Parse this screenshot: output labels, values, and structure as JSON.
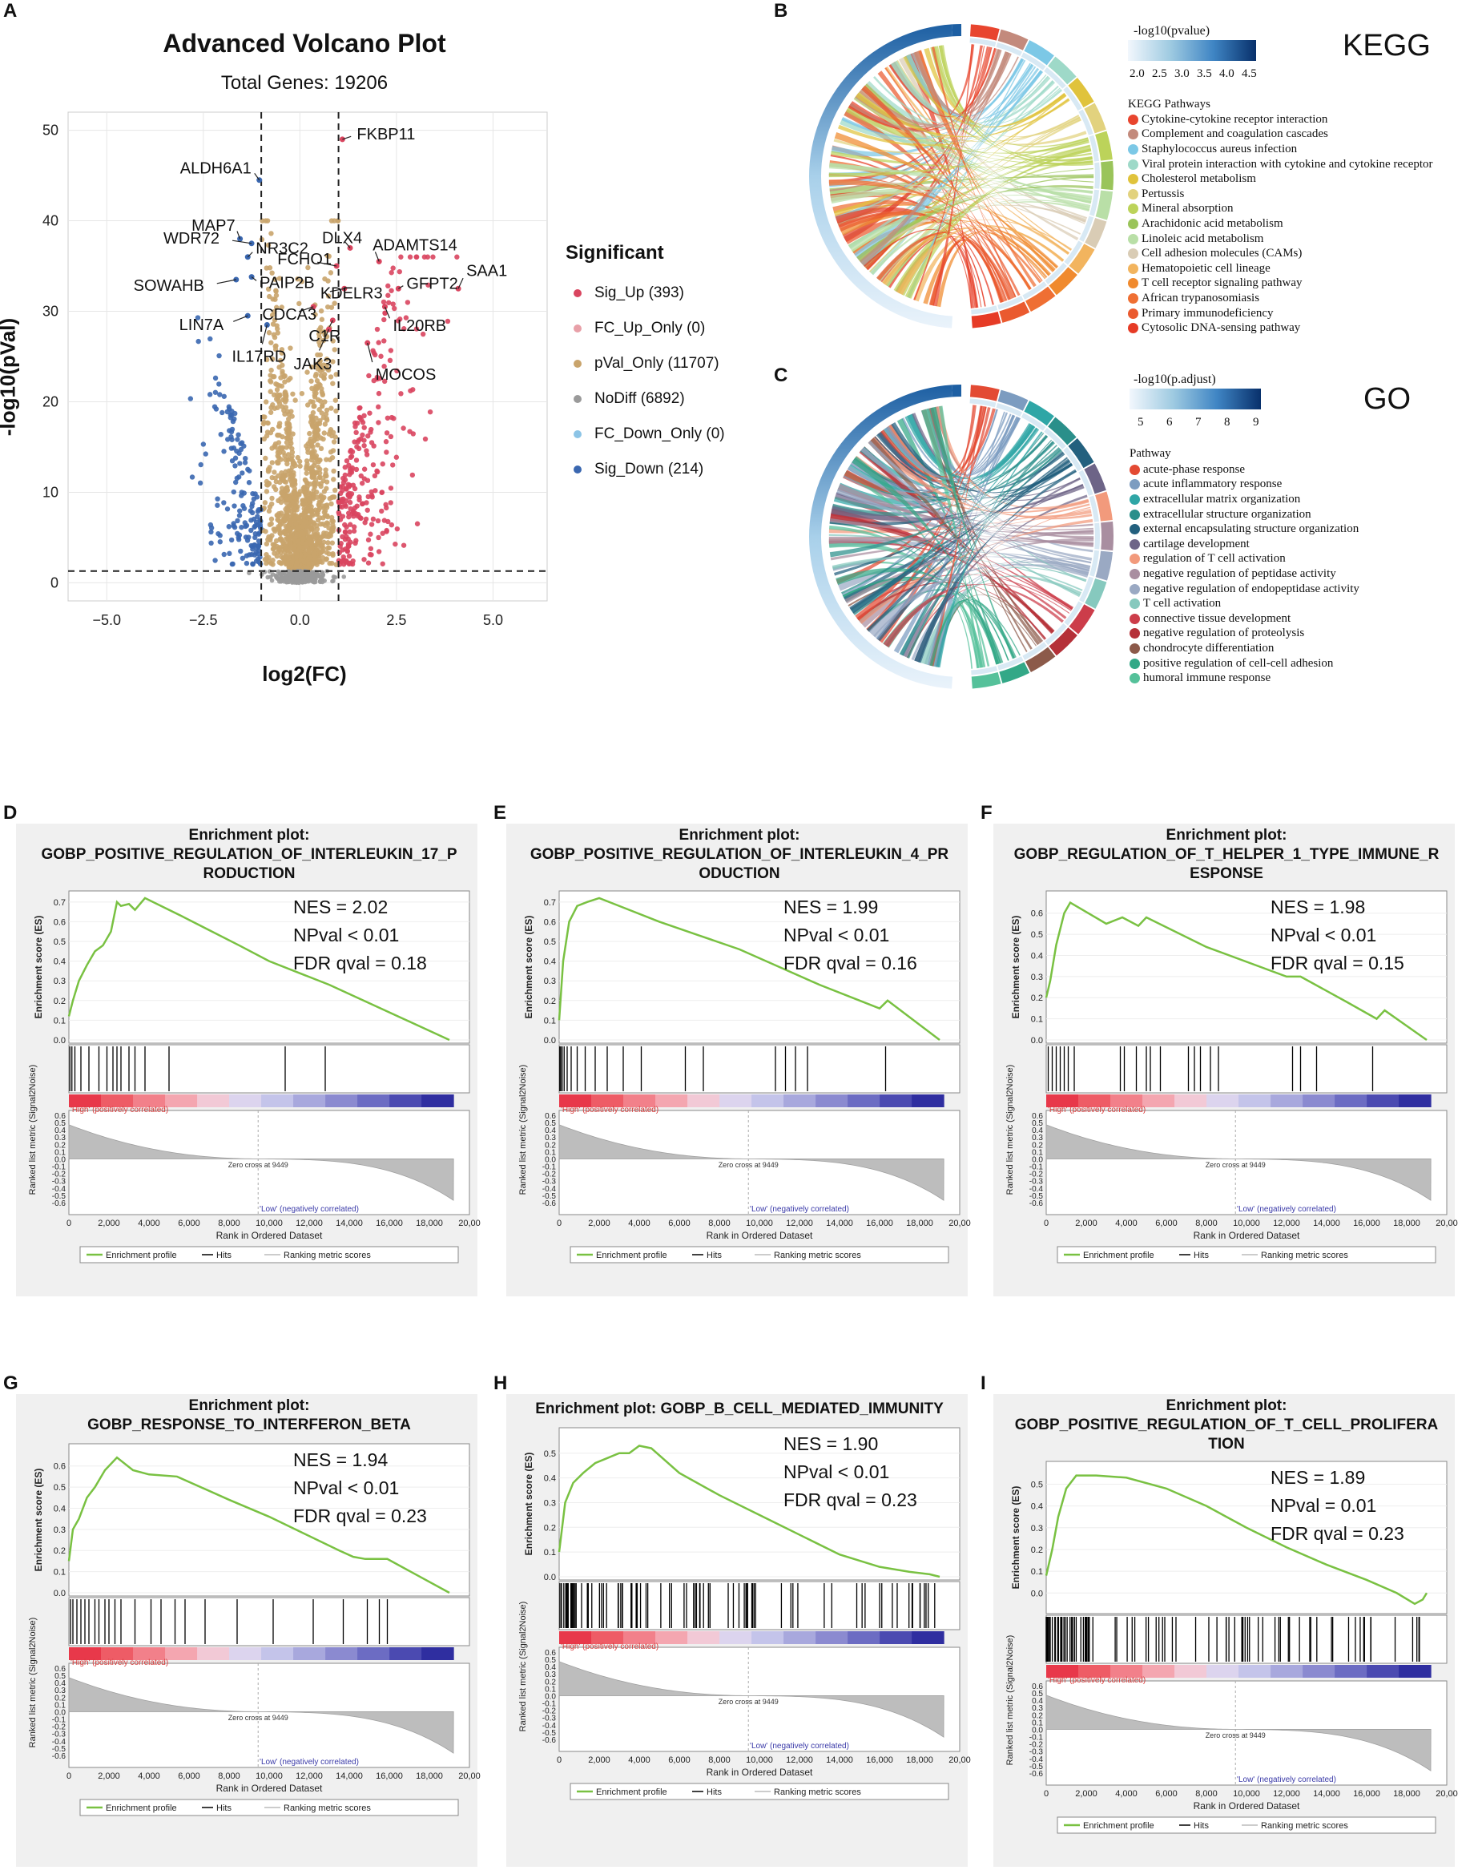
{
  "panel_letters": {
    "a": "A",
    "b": "B",
    "c": "C",
    "d": "D",
    "e": "E",
    "f": "F",
    "g": "G",
    "h": "H",
    "i": "I"
  },
  "volcano": {
    "title": "Advanced Volcano Plot",
    "subtitle": "Total Genes: 19206",
    "xlabel": "log2(FC)",
    "ylabel": "-log10(pVal)",
    "legend_title": "Significant",
    "legend": [
      {
        "label": "Sig_Up (393)",
        "color": "#d9455f"
      },
      {
        "label": "FC_Up_Only (0)",
        "color": "#e8a0a8"
      },
      {
        "label": "pVal_Only (11707)",
        "color": "#c9a46c"
      },
      {
        "label": "NoDiff (6892)",
        "color": "#9a9a9a"
      },
      {
        "label": "FC_Down_Only (0)",
        "color": "#8cc4e6"
      },
      {
        "label": "Sig_Down (214)",
        "color": "#3a67b0"
      }
    ],
    "xticks": [
      "−5.0",
      "−2.5",
      "0.0",
      "2.5",
      "5.0"
    ],
    "yticks": [
      "0",
      "10",
      "20",
      "30",
      "40",
      "50"
    ],
    "genes": [
      {
        "name": "FKBP11",
        "x": 1.1,
        "y": 49
      },
      {
        "name": "ALDH6A1",
        "x": -1.05,
        "y": 44.5
      },
      {
        "name": "MAP7",
        "x": -1.55,
        "y": 38
      },
      {
        "name": "DLX4",
        "x": 1.3,
        "y": 37
      },
      {
        "name": "WDR72",
        "x": -1.25,
        "y": 37.5
      },
      {
        "name": "NR3C2",
        "x": -1.35,
        "y": 36
      },
      {
        "name": "FCHO1",
        "x": 0.95,
        "y": 35
      },
      {
        "name": "ADAMTS14",
        "x": 2.05,
        "y": 35.5
      },
      {
        "name": "SAA1",
        "x": 4.1,
        "y": 32.5
      },
      {
        "name": "SOWAHB",
        "x": -1.65,
        "y": 33.5
      },
      {
        "name": "PAIP2B",
        "x": -1.25,
        "y": 33.8
      },
      {
        "name": "KDELR3",
        "x": 1.15,
        "y": 32.5
      },
      {
        "name": "GFPT2",
        "x": 2.55,
        "y": 32.5
      },
      {
        "name": "LIN7A",
        "x": -1.35,
        "y": 29.5
      },
      {
        "name": "CDCA3",
        "x": 0.35,
        "y": 30.5
      },
      {
        "name": "C1R",
        "x": 0.85,
        "y": 29
      },
      {
        "name": "IL20RB",
        "x": 2.2,
        "y": 30.5
      },
      {
        "name": "IL17RD",
        "x": -0.85,
        "y": 28.5
      },
      {
        "name": "JAK3",
        "x": 0.75,
        "y": 28
      },
      {
        "name": "MOCOS",
        "x": 1.75,
        "y": 26.5
      }
    ]
  },
  "kegg": {
    "label": "KEGG",
    "colorbar_title": "-log10(pvalue)",
    "colorbar_ticks": [
      "2.0",
      "2.5",
      "3.0",
      "3.5",
      "4.0",
      "4.5"
    ],
    "legend_title": "KEGG Pathways",
    "pathways": [
      {
        "name": "Cytokine-cytokine receptor interaction",
        "color": "#e8452e"
      },
      {
        "name": "Complement and coagulation cascades",
        "color": "#c38a7c"
      },
      {
        "name": "Staphylococcus aureus infection",
        "color": "#7cc8e6"
      },
      {
        "name": "Viral protein interaction with cytokine and cytokine receptor",
        "color": "#9ed9c8"
      },
      {
        "name": "Cholesterol metabolism",
        "color": "#e0c33c"
      },
      {
        "name": "Pertussis",
        "color": "#e2d27e"
      },
      {
        "name": "Mineral absorption",
        "color": "#bcd35a"
      },
      {
        "name": "Arachidonic acid metabolism",
        "color": "#9ac45a"
      },
      {
        "name": "Linoleic acid metabolism",
        "color": "#b9dfa7"
      },
      {
        "name": "Cell adhesion molecules (CAMs)",
        "color": "#d9ccb5"
      },
      {
        "name": "Hematopoietic cell lineage",
        "color": "#f2b45e"
      },
      {
        "name": "T cell receptor signaling pathway",
        "color": "#f08a2e"
      },
      {
        "name": "African trypanosomiasis",
        "color": "#ef6f33"
      },
      {
        "name": "Primary immunodeficiency",
        "color": "#ea5a2f"
      },
      {
        "name": "Cytosolic DNA-sensing pathway",
        "color": "#e63b26"
      }
    ]
  },
  "go": {
    "label": "GO",
    "colorbar_title": "-log10(p.adjust)",
    "colorbar_ticks": [
      "5",
      "6",
      "7",
      "8",
      "9"
    ],
    "legend_title": "Pathway",
    "pathways": [
      {
        "name": "acute-phase response",
        "color": "#e34a33"
      },
      {
        "name": "acute inflammatory response",
        "color": "#7c9cc0"
      },
      {
        "name": "extracellular matrix organization",
        "color": "#2fa6a6"
      },
      {
        "name": "extracellular structure organization",
        "color": "#2a8f8a"
      },
      {
        "name": "external encapsulating structure organization",
        "color": "#23607e"
      },
      {
        "name": "cartilage development",
        "color": "#6d6487"
      },
      {
        "name": "regulation of T cell activation",
        "color": "#f29a7c"
      },
      {
        "name": "negative regulation of peptidase activity",
        "color": "#a98ea0"
      },
      {
        "name": "negative regulation of endopeptidase activity",
        "color": "#9aa9c3"
      },
      {
        "name": "T cell activation",
        "color": "#86c9be"
      },
      {
        "name": "connective tissue development",
        "color": "#cc3d4a"
      },
      {
        "name": "negative regulation of proteolysis",
        "color": "#b53038"
      },
      {
        "name": "chondrocyte differentiation",
        "color": "#8c5a4a"
      },
      {
        "name": "positive regulation of cell-cell adhesion",
        "color": "#33a887"
      },
      {
        "name": "humoral immune response",
        "color": "#55c19a"
      }
    ]
  },
  "gsea_common": {
    "header": "Enrichment plot:",
    "es_label": "Enrichment score (ES)",
    "metric_label": "Ranked list metric (Signal2Noise)",
    "xlabel": "Rank in Ordered Dataset",
    "high_label": "'High' (positively correlated)",
    "low_label": "'Low' (negatively correlated)",
    "zero_cross": "Zero cross at 9449",
    "legend": [
      "Enrichment profile",
      "Hits",
      "Ranking metric scores"
    ],
    "xticks": [
      "0",
      "2,000",
      "4,000",
      "6,000",
      "8,000",
      "10,000",
      "12,000",
      "14,000",
      "16,000",
      "18,000",
      "20,00"
    ],
    "metric_ticks": [
      "0.6",
      "0.5",
      "0.4",
      "0.3",
      "0.2",
      "0.1",
      "0.0",
      "-0.1",
      "-0.2",
      "-0.3",
      "-0.4",
      "-0.5",
      "-0.6"
    ]
  },
  "gsea": [
    {
      "letter": "D",
      "title_lines": [
        "GOBP_POSITIVE_REGULATION_OF_INTERLEUKIN_17_P",
        "RODUCTION"
      ],
      "nes": "NES = 2.02",
      "npval": "NPval < 0.01",
      "fdr": "FDR qval = 0.18",
      "ymax": 0.7,
      "yticks": [
        "0.7",
        "0.6",
        "0.5",
        "0.4",
        "0.3",
        "0.2",
        "0.1",
        "0.0"
      ],
      "es": [
        [
          0,
          0.12
        ],
        [
          200,
          0.2
        ],
        [
          500,
          0.3
        ],
        [
          900,
          0.38
        ],
        [
          1300,
          0.45
        ],
        [
          1700,
          0.48
        ],
        [
          2100,
          0.55
        ],
        [
          2400,
          0.7
        ],
        [
          2600,
          0.68
        ],
        [
          3000,
          0.69
        ],
        [
          3300,
          0.66
        ],
        [
          3800,
          0.72
        ],
        [
          5600,
          0.63
        ],
        [
          8500,
          0.48
        ],
        [
          10000,
          0.4
        ],
        [
          13000,
          0.28
        ],
        [
          19000,
          0.0
        ]
      ],
      "hits": [
        50,
        150,
        300,
        600,
        1000,
        1500,
        1900,
        2200,
        2400,
        2600,
        3000,
        3300,
        3800,
        5000,
        10800,
        12800
      ]
    },
    {
      "letter": "E",
      "title_lines": [
        "GOBP_POSITIVE_REGULATION_OF_INTERLEUKIN_4_PR",
        "ODUCTION"
      ],
      "nes": "NES = 1.99",
      "npval": "NPval < 0.01",
      "fdr": "FDR qval = 0.16",
      "ymax": 0.7,
      "yticks": [
        "0.7",
        "0.6",
        "0.5",
        "0.4",
        "0.3",
        "0.2",
        "0.1",
        "0.0"
      ],
      "es": [
        [
          0,
          0.1
        ],
        [
          200,
          0.4
        ],
        [
          500,
          0.6
        ],
        [
          900,
          0.68
        ],
        [
          1400,
          0.7
        ],
        [
          2000,
          0.72
        ],
        [
          3000,
          0.68
        ],
        [
          5000,
          0.6
        ],
        [
          7000,
          0.53
        ],
        [
          9000,
          0.46
        ],
        [
          11000,
          0.37
        ],
        [
          13000,
          0.28
        ],
        [
          15000,
          0.2
        ],
        [
          16000,
          0.16
        ],
        [
          16400,
          0.2
        ],
        [
          19000,
          0.0
        ]
      ],
      "hits": [
        30,
        80,
        150,
        250,
        400,
        600,
        900,
        1300,
        1800,
        2400,
        3200,
        4100,
        6300,
        7200,
        10800,
        11300,
        11800,
        12400,
        16300
      ]
    },
    {
      "letter": "F",
      "title_lines": [
        "GOBP_REGULATION_OF_T_HELPER_1_TYPE_IMMUNE_R",
        "ESPONSE"
      ],
      "nes": "NES = 1.98",
      "npval": "NPval < 0.01",
      "fdr": "FDR qval = 0.15",
      "ymax": 0.65,
      "yticks": [
        "0.6",
        "0.5",
        "0.4",
        "0.3",
        "0.2",
        "0.1",
        "0.0"
      ],
      "es": [
        [
          0,
          0.2
        ],
        [
          200,
          0.28
        ],
        [
          500,
          0.45
        ],
        [
          900,
          0.6
        ],
        [
          1200,
          0.65
        ],
        [
          3000,
          0.55
        ],
        [
          3800,
          0.58
        ],
        [
          4600,
          0.54
        ],
        [
          5000,
          0.58
        ],
        [
          8000,
          0.44
        ],
        [
          12000,
          0.3
        ],
        [
          12700,
          0.3
        ],
        [
          15000,
          0.18
        ],
        [
          16500,
          0.1
        ],
        [
          16900,
          0.14
        ],
        [
          19000,
          0.0
        ]
      ],
      "hits": [
        100,
        300,
        500,
        700,
        900,
        1100,
        1400,
        3700,
        3900,
        4500,
        5000,
        5200,
        5700,
        7100,
        7400,
        7700,
        8200,
        8600,
        12300,
        12700,
        13500,
        16300
      ]
    },
    {
      "letter": "G",
      "title_lines": [
        "GOBP_RESPONSE_TO_INTERFERON_BETA"
      ],
      "nes": "NES = 1.94",
      "npval": "NPval < 0.01",
      "fdr": "FDR qval = 0.23",
      "ymax": 0.65,
      "yticks": [
        "0.6",
        "0.5",
        "0.4",
        "0.3",
        "0.2",
        "0.1",
        "0.0"
      ],
      "es": [
        [
          0,
          0.15
        ],
        [
          200,
          0.3
        ],
        [
          500,
          0.35
        ],
        [
          900,
          0.45
        ],
        [
          1300,
          0.5
        ],
        [
          1800,
          0.58
        ],
        [
          2400,
          0.64
        ],
        [
          3200,
          0.58
        ],
        [
          4000,
          0.56
        ],
        [
          5400,
          0.55
        ],
        [
          8000,
          0.44
        ],
        [
          10000,
          0.36
        ],
        [
          13500,
          0.2
        ],
        [
          14200,
          0.17
        ],
        [
          14800,
          0.16
        ],
        [
          15900,
          0.16
        ],
        [
          19000,
          0.0
        ]
      ],
      "hits": [
        80,
        200,
        400,
        600,
        800,
        1000,
        1300,
        1500,
        1800,
        2000,
        2300,
        2600,
        3300,
        4100,
        4600,
        5300,
        5800,
        6800,
        8400,
        10200,
        12200,
        13700,
        14900,
        15500,
        15900
      ]
    },
    {
      "letter": "H",
      "title_lines": [
        "GOBP_B_CELL_MEDIATED_IMMUNITY"
      ],
      "nes": "NES = 1.90",
      "npval": "NPval < 0.01",
      "fdr": "FDR qval = 0.23",
      "ymax": 0.55,
      "yticks": [
        "0.5",
        "0.4",
        "0.3",
        "0.2",
        "0.1",
        "0.0"
      ],
      "es": [
        [
          0,
          0.1
        ],
        [
          300,
          0.3
        ],
        [
          700,
          0.38
        ],
        [
          1200,
          0.42
        ],
        [
          1800,
          0.46
        ],
        [
          2400,
          0.48
        ],
        [
          3000,
          0.5
        ],
        [
          3500,
          0.5
        ],
        [
          4000,
          0.53
        ],
        [
          4600,
          0.52
        ],
        [
          6000,
          0.42
        ],
        [
          8000,
          0.33
        ],
        [
          10000,
          0.25
        ],
        [
          12000,
          0.17
        ],
        [
          14000,
          0.09
        ],
        [
          16000,
          0.04
        ],
        [
          17500,
          0.02
        ],
        [
          18500,
          0.01
        ],
        [
          19000,
          0.0
        ]
      ],
      "hits": "dense"
    },
    {
      "letter": "I",
      "title_lines": [
        "GOBP_POSITIVE_REGULATION_OF_T_CELL_PROLIFERA",
        "TION"
      ],
      "nes": "NES = 1.89",
      "npval": "NPval = 0.01",
      "fdr": "FDR qval = 0.23",
      "ymax": 0.55,
      "yticks": [
        "0.5",
        "0.4",
        "0.3",
        "0.2",
        "0.1",
        "0.0"
      ],
      "es": [
        [
          0,
          0.08
        ],
        [
          300,
          0.2
        ],
        [
          600,
          0.35
        ],
        [
          1000,
          0.48
        ],
        [
          1500,
          0.54
        ],
        [
          2500,
          0.54
        ],
        [
          4000,
          0.53
        ],
        [
          6000,
          0.48
        ],
        [
          8000,
          0.4
        ],
        [
          10000,
          0.3
        ],
        [
          12000,
          0.21
        ],
        [
          14000,
          0.13
        ],
        [
          16000,
          0.06
        ],
        [
          17500,
          0.0
        ],
        [
          18400,
          -0.05
        ],
        [
          18800,
          -0.03
        ],
        [
          19000,
          0.0
        ]
      ],
      "hits": "dense"
    }
  ]
}
